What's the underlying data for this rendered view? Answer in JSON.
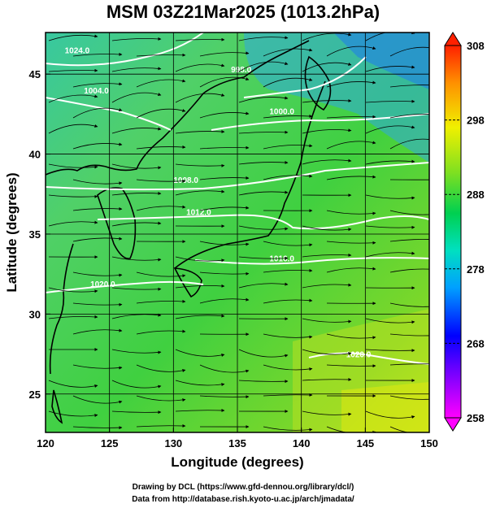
{
  "title": "MSM 03Z21Mar2025 (1013.2hPa)",
  "xlabel": "Longitude (degrees)",
  "ylabel": "Latitude  (degrees)",
  "x_ticks": [
    120,
    125,
    130,
    135,
    140,
    145,
    150
  ],
  "y_ticks": [
    25,
    30,
    35,
    40,
    45
  ],
  "xlim": [
    120,
    150
  ],
  "ylim": [
    22.6,
    47.6
  ],
  "colorbar": {
    "labels": [
      308,
      298,
      288,
      278,
      268,
      258
    ],
    "range": [
      258,
      308
    ],
    "colors": [
      "#ff00ff",
      "#0000ff",
      "#00a0ff",
      "#00e0a0",
      "#00d040",
      "#a0e020",
      "#f0f000",
      "#ff9000",
      "#ff2000"
    ]
  },
  "isobars": [
    {
      "label": "1024.0",
      "lon": 121.5,
      "lat": 46.3
    },
    {
      "label": "1004.0",
      "lon": 123.0,
      "lat": 43.8
    },
    {
      "label": "998.0",
      "lon": 134.5,
      "lat": 45.1
    },
    {
      "label": "1000.0",
      "lon": 137.5,
      "lat": 42.5
    },
    {
      "label": "1008.0",
      "lon": 130.0,
      "lat": 38.2
    },
    {
      "label": "1012.0",
      "lon": 131.0,
      "lat": 36.2
    },
    {
      "label": "1016.0",
      "lon": 137.5,
      "lat": 33.3
    },
    {
      "label": "1020.0",
      "lon": 123.5,
      "lat": 31.7
    },
    {
      "label": "1020.0",
      "lon": 143.5,
      "lat": 27.3
    }
  ],
  "credit_line1": "Drawing by DCL (https://www.gfd-dennou.org/library/dcl/)",
  "credit_line2": "Data from http://database.rish.kyoto-u.ac.jp/arch/jmadata/"
}
